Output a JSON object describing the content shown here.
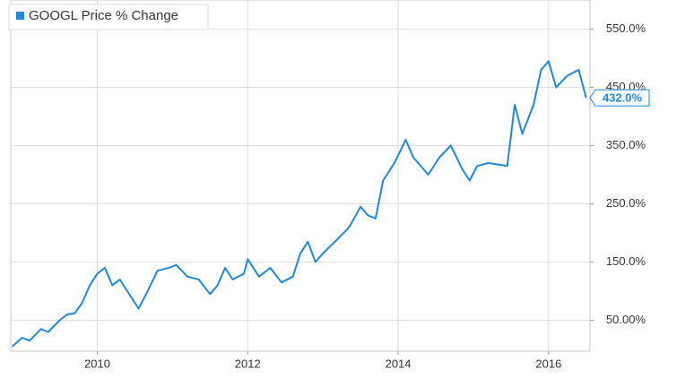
{
  "chart_data": {
    "type": "line",
    "x": [
      2008.87,
      2009.0,
      2009.1,
      2009.25,
      2009.35,
      2009.5,
      2009.6,
      2009.7,
      2009.8,
      2009.9,
      2010.0,
      2010.1,
      2010.2,
      2010.3,
      2010.45,
      2010.55,
      2010.65,
      2010.8,
      2010.95,
      2011.05,
      2011.2,
      2011.35,
      2011.5,
      2011.6,
      2011.7,
      2011.8,
      2011.95,
      2012.0,
      2012.15,
      2012.3,
      2012.45,
      2012.6,
      2012.7,
      2012.8,
      2012.9,
      2013.0,
      2013.2,
      2013.35,
      2013.5,
      2013.6,
      2013.7,
      2013.8,
      2013.95,
      2014.1,
      2014.2,
      2014.4,
      2014.55,
      2014.7,
      2014.85,
      2014.95,
      2015.05,
      2015.2,
      2015.45,
      2015.55,
      2015.65,
      2015.8,
      2015.9,
      2016.0,
      2016.1,
      2016.25,
      2016.4,
      2016.5
    ],
    "series": [
      {
        "name": "GOOGL Price % Change",
        "color": "#1f88d9",
        "values": [
          5,
          20,
          15,
          35,
          30,
          50,
          60,
          62,
          80,
          110,
          130,
          140,
          110,
          120,
          90,
          70,
          95,
          135,
          140,
          145,
          125,
          120,
          95,
          110,
          140,
          120,
          130,
          155,
          125,
          140,
          115,
          125,
          165,
          185,
          150,
          165,
          190,
          210,
          245,
          230,
          225,
          290,
          320,
          360,
          330,
          300,
          330,
          350,
          310,
          290,
          315,
          320,
          315,
          420,
          370,
          420,
          480,
          495,
          450,
          470,
          480,
          432
        ]
      }
    ],
    "end_label": {
      "value": 432.0,
      "label": "432.0%"
    },
    "xlim": [
      2008.85,
      2016.55
    ],
    "xticks": [
      2010,
      2012,
      2014,
      2016
    ],
    "ylim": [
      -3,
      600
    ],
    "yticks": [
      {
        "value": 50,
        "label": "50.00%"
      },
      {
        "value": 150,
        "label": "150.0%"
      },
      {
        "value": 250,
        "label": "250.0%"
      },
      {
        "value": 350,
        "label": "350.0%"
      },
      {
        "value": 450,
        "label": "450.0%"
      },
      {
        "value": 550,
        "label": "550.0%"
      }
    ],
    "grid": true
  }
}
